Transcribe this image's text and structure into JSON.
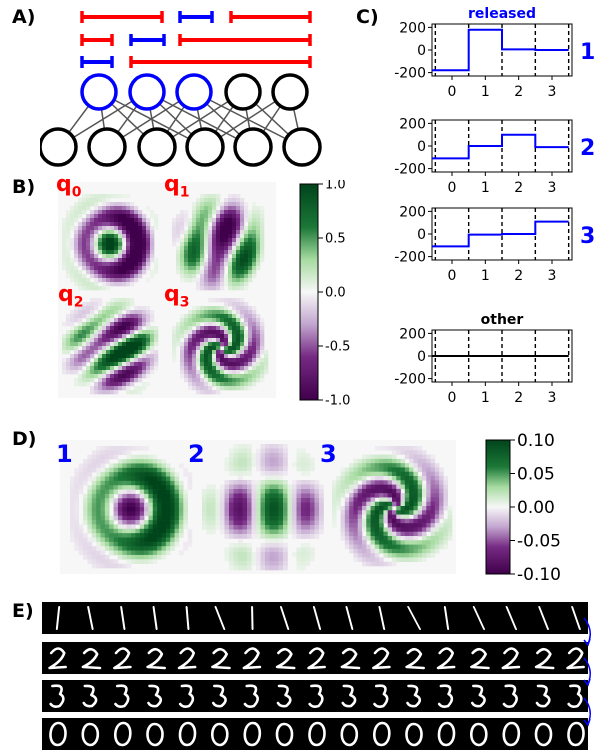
{
  "panels": {
    "a": "A)",
    "b": "B)",
    "c": "C)",
    "d": "D)",
    "e": "E)"
  },
  "colors": {
    "red": "#ff0000",
    "blue": "#0000ff",
    "green": "#00441b",
    "purple": "#40004b"
  },
  "panel_b": {
    "labels": [
      {
        "main": "q",
        "sub": "0"
      },
      {
        "main": "q",
        "sub": "1"
      },
      {
        "main": "q",
        "sub": "2"
      },
      {
        "main": "q",
        "sub": "3"
      }
    ],
    "colorbar_ticks": [
      "1.0",
      "0.5",
      "0.0",
      "-0.5",
      "-1.0"
    ]
  },
  "panel_d": {
    "labels": [
      "1",
      "2",
      "3"
    ],
    "colorbar_ticks": [
      "0.10",
      "0.05",
      "0.00",
      "-0.05",
      "-0.10"
    ]
  },
  "chart_data": [
    {
      "type": "line",
      "title": "released",
      "side_label": "1",
      "xlim": [
        -0.6,
        3.6
      ],
      "ylim": [
        -230,
        230
      ],
      "xticks": [
        "0",
        "1",
        "2",
        "3"
      ],
      "yticks": [
        "200",
        "0",
        "-200"
      ],
      "series": [
        {
          "x": [
            -0.6,
            0.5,
            0.5,
            1.5,
            1.5,
            2.5,
            2.5,
            3.5
          ],
          "values": [
            -180,
            -180,
            180,
            180,
            5,
            5,
            0,
            0
          ]
        }
      ],
      "vlines": [
        -0.5,
        0.5,
        1.5,
        2.5,
        3.5
      ]
    },
    {
      "type": "line",
      "title": "",
      "side_label": "2",
      "xlim": [
        -0.6,
        3.6
      ],
      "ylim": [
        -230,
        230
      ],
      "xticks": [
        "0",
        "1",
        "2",
        "3"
      ],
      "yticks": [
        "200",
        "0",
        "-200"
      ],
      "series": [
        {
          "x": [
            -0.6,
            0.5,
            0.5,
            1.5,
            1.5,
            2.5,
            2.5,
            3.5
          ],
          "values": [
            -110,
            -110,
            0,
            0,
            100,
            100,
            -10,
            -10
          ]
        }
      ],
      "vlines": [
        -0.5,
        0.5,
        1.5,
        2.5,
        3.5
      ]
    },
    {
      "type": "line",
      "title": "",
      "side_label": "3",
      "xlim": [
        -0.6,
        3.6
      ],
      "ylim": [
        -230,
        230
      ],
      "xticks": [
        "0",
        "1",
        "2",
        "3"
      ],
      "yticks": [
        "200",
        "0",
        "-200"
      ],
      "series": [
        {
          "x": [
            -0.6,
            0.5,
            0.5,
            1.5,
            1.5,
            2.5,
            2.5,
            3.5
          ],
          "values": [
            -110,
            -110,
            -5,
            -5,
            0,
            0,
            110,
            110
          ]
        }
      ],
      "vlines": [
        -0.5,
        0.5,
        1.5,
        2.5,
        3.5
      ]
    },
    {
      "type": "line",
      "title": "other",
      "side_label": "",
      "xlim": [
        -0.6,
        3.6
      ],
      "ylim": [
        -230,
        230
      ],
      "xticks": [
        "0",
        "1",
        "2",
        "3"
      ],
      "yticks": [
        "200",
        "0",
        "-200"
      ],
      "series": [
        {
          "x": [
            -0.6,
            3.5
          ],
          "values": [
            0,
            0
          ]
        }
      ],
      "vlines": [
        -0.5,
        0.5,
        1.5,
        2.5,
        3.5
      ]
    }
  ],
  "panel_e": {
    "rows": [
      {
        "digit": "1",
        "count": 17
      },
      {
        "digit": "2",
        "count": 17
      },
      {
        "digit": "3",
        "count": 17
      },
      {
        "digit": "0",
        "count": 17
      }
    ]
  }
}
